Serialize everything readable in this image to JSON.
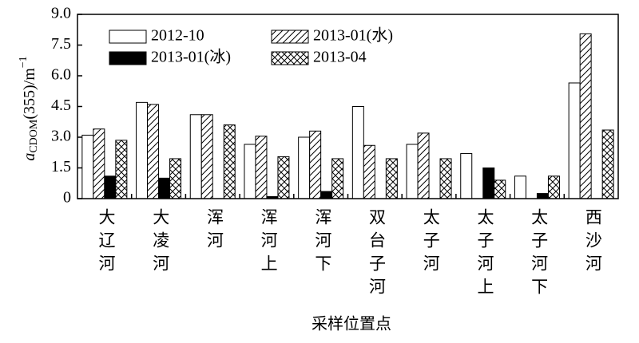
{
  "chart_data": {
    "type": "bar",
    "y_label": {
      "symbol": "a",
      "subscript": "CDOM",
      "main": "(355)/m",
      "superscript": "−1"
    },
    "x_label": "采样位置点",
    "categories": [
      "大辽河",
      "大凌河",
      "浑河",
      "浑河上",
      "浑河下",
      "双台子河",
      "太子河",
      "太子河上",
      "太子河下",
      "西沙河"
    ],
    "series": [
      {
        "name": "2012-10",
        "color": "#ffffff",
        "pattern": "none",
        "values": [
          3.1,
          4.7,
          4.1,
          2.65,
          3.0,
          4.5,
          2.65,
          2.2,
          1.1,
          5.65
        ]
      },
      {
        "name": "2013-01(水)",
        "color": "#ffffff",
        "pattern": "diagonal",
        "values": [
          3.4,
          4.6,
          4.1,
          3.05,
          3.3,
          2.6,
          3.2,
          null,
          null,
          8.05
        ]
      },
      {
        "name": "2013-01(冰)",
        "color": "#000000",
        "pattern": "none",
        "values": [
          1.1,
          1.0,
          null,
          0.1,
          0.35,
          null,
          null,
          1.5,
          0.25,
          null
        ]
      },
      {
        "name": "2013-04",
        "color": "#ffffff",
        "pattern": "cross",
        "values": [
          2.85,
          1.95,
          3.6,
          2.05,
          1.95,
          1.95,
          1.95,
          0.9,
          1.1,
          3.35
        ]
      }
    ],
    "ylim": [
      0,
      9
    ],
    "yticks": [
      0,
      1.5,
      {
        "value": 3,
        "label": "3.0"
      },
      4.5,
      {
        "value": 6,
        "label": "6.0"
      },
      7.5,
      {
        "value": 9,
        "label": "9.0"
      }
    ],
    "grid": false
  }
}
